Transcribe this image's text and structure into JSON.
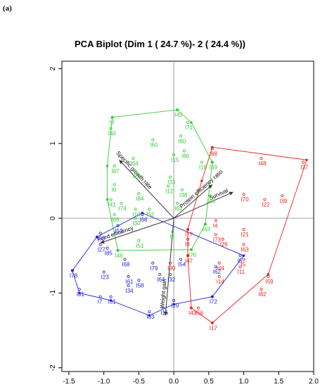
{
  "panel_label": "(a)",
  "chart_data": {
    "type": "scatter",
    "title": "PCA Biplot (Dim 1 ( 24.7 %)- 2 ( 24.4 %))",
    "xlim": [
      -1.6,
      2.0
    ],
    "ylim": [
      -2.05,
      2.1
    ],
    "x_ticks": [
      -1.5,
      -1.0,
      -0.5,
      0.0,
      0.5,
      1.0,
      1.5,
      2.0
    ],
    "x_tick_labels": [
      "-1.5",
      "-1.0",
      "-0.5",
      "0.0",
      "0.5",
      "1.0",
      "1.5",
      "2.0"
    ],
    "y_ticks": [
      -2,
      -1,
      0,
      1,
      2
    ],
    "y_tick_labels": [
      "-2",
      "-1",
      "0",
      "1",
      "2"
    ],
    "colors": {
      "green": "#33cc33",
      "red": "#ee2222",
      "blue": "#2222dd",
      "vector": "#333333",
      "axis": "#888888"
    },
    "groups": [
      {
        "color": "#33cc33",
        "points": [
          {
            "label": "I6",
            "x": -0.88,
            "y": 1.35
          },
          {
            "label": "I40",
            "x": -0.9,
            "y": 1.2
          },
          {
            "label": "I45",
            "x": 0.05,
            "y": 1.45
          },
          {
            "label": "I71",
            "x": 0.2,
            "y": 1.28
          },
          {
            "label": "I80",
            "x": 0.1,
            "y": 1.1
          },
          {
            "label": "I60",
            "x": -0.3,
            "y": 1.05
          },
          {
            "label": "I86",
            "x": 0.15,
            "y": 0.9
          },
          {
            "label": "I15",
            "x": 0.0,
            "y": 0.85
          },
          {
            "label": "I64",
            "x": -0.58,
            "y": 0.8
          },
          {
            "label": "I16",
            "x": 0.4,
            "y": 0.75
          },
          {
            "label": "I69",
            "x": 0.55,
            "y": 0.75
          },
          {
            "label": "I87",
            "x": -0.85,
            "y": 0.7
          },
          {
            "label": "I25",
            "x": -0.55,
            "y": 0.63
          },
          {
            "label": "I33",
            "x": -0.05,
            "y": 0.55
          },
          {
            "label": "I8",
            "x": -0.85,
            "y": 0.45
          },
          {
            "label": "I12",
            "x": -0.08,
            "y": 0.43
          },
          {
            "label": "I38",
            "x": 0.12,
            "y": 0.38
          },
          {
            "label": "I84",
            "x": -0.5,
            "y": 0.33
          },
          {
            "label": "I41",
            "x": -0.9,
            "y": 0.25
          },
          {
            "label": "I74",
            "x": -0.75,
            "y": 0.2
          },
          {
            "label": "I10",
            "x": -0.55,
            "y": 0.12
          },
          {
            "label": "I62",
            "x": 0.05,
            "y": 0.2
          },
          {
            "label": "I52",
            "x": -0.35,
            "y": 0.12
          },
          {
            "label": "I30",
            "x": -0.55,
            "y": 0.0
          },
          {
            "label": "I66",
            "x": -0.85,
            "y": 0.05
          },
          {
            "label": "I48",
            "x": 0.52,
            "y": 0.3
          },
          {
            "label": "I43",
            "x": 0.45,
            "y": -0.08
          },
          {
            "label": "I51",
            "x": -0.5,
            "y": -0.3
          },
          {
            "label": "I3",
            "x": -0.02,
            "y": -0.18
          },
          {
            "label": "I46",
            "x": -0.8,
            "y": -0.43
          },
          {
            "label": "I76",
            "x": 0.25,
            "y": -0.42
          }
        ],
        "hull": [
          [
            -0.88,
            1.35
          ],
          [
            0.05,
            1.45
          ],
          [
            0.25,
            1.28
          ],
          [
            0.55,
            0.75
          ],
          [
            0.45,
            -0.08
          ],
          [
            0.25,
            -0.42
          ],
          [
            -0.8,
            -0.43
          ],
          [
            -0.95,
            0.25
          ],
          [
            -0.95,
            0.7
          ]
        ]
      },
      {
        "color": "#ee2222",
        "points": [
          {
            "label": "I37",
            "x": 1.85,
            "y": 0.75
          },
          {
            "label": "I48",
            "x": 1.25,
            "y": 0.8
          },
          {
            "label": "I88",
            "x": 0.55,
            "y": 0.93
          },
          {
            "label": "I70",
            "x": 1.0,
            "y": 0.32
          },
          {
            "label": "I22",
            "x": 1.3,
            "y": 0.25
          },
          {
            "label": "I39",
            "x": 1.55,
            "y": 0.3
          },
          {
            "label": "I4",
            "x": 0.6,
            "y": -0.03
          },
          {
            "label": "I21",
            "x": 1.0,
            "y": -0.15
          },
          {
            "label": "I77",
            "x": 0.2,
            "y": -0.15
          },
          {
            "label": "I73",
            "x": 0.6,
            "y": -0.22
          },
          {
            "label": "I9",
            "x": 0.2,
            "y": -0.28
          },
          {
            "label": "I26",
            "x": 0.7,
            "y": -0.28
          },
          {
            "label": "I63",
            "x": 1.0,
            "y": -0.35
          },
          {
            "label": "I47",
            "x": 0.2,
            "y": -0.5
          },
          {
            "label": "I90",
            "x": -0.05,
            "y": -0.6
          },
          {
            "label": "I44",
            "x": 0.65,
            "y": -0.6
          },
          {
            "label": "I5",
            "x": 1.0,
            "y": -0.55
          },
          {
            "label": "I14",
            "x": 0.65,
            "y": -0.78
          },
          {
            "label": "I59",
            "x": 1.35,
            "y": -0.78
          },
          {
            "label": "I11",
            "x": 0.95,
            "y": -0.65
          },
          {
            "label": "I82",
            "x": 1.25,
            "y": -0.95
          },
          {
            "label": "I43",
            "x": 0.25,
            "y": -1.2
          },
          {
            "label": "I56",
            "x": 0.35,
            "y": -1.2
          },
          {
            "label": "I17",
            "x": 0.55,
            "y": -1.4
          }
        ],
        "hull": [
          [
            0.55,
            0.95
          ],
          [
            1.9,
            0.78
          ],
          [
            1.35,
            -0.75
          ],
          [
            0.55,
            -1.4
          ],
          [
            0.25,
            -1.2
          ],
          [
            0.2,
            -0.5
          ],
          [
            0.2,
            -0.15
          ],
          [
            0.4,
            0.5
          ]
        ]
      },
      {
        "color": "#2222dd",
        "points": [
          {
            "label": "I78",
            "x": -1.45,
            "y": -0.7
          },
          {
            "label": "I81",
            "x": -1.35,
            "y": -0.95
          },
          {
            "label": "I7",
            "x": -1.05,
            "y": -1.05
          },
          {
            "label": "I31",
            "x": -0.9,
            "y": -1.05
          },
          {
            "label": "I83",
            "x": -0.35,
            "y": -1.25
          },
          {
            "label": "I15",
            "x": -0.15,
            "y": -1.2
          },
          {
            "label": "I29",
            "x": 0.0,
            "y": -1.1
          },
          {
            "label": "I72",
            "x": 0.55,
            "y": -1.05
          },
          {
            "label": "I55",
            "x": -1.05,
            "y": -0.2
          },
          {
            "label": "I27",
            "x": -1.05,
            "y": -0.35
          },
          {
            "label": "I85",
            "x": -0.95,
            "y": -0.4
          },
          {
            "label": "I53",
            "x": -0.8,
            "y": -0.1
          },
          {
            "label": "I66",
            "x": -0.45,
            "y": 0.05
          },
          {
            "label": "I68",
            "x": -0.7,
            "y": -0.55
          },
          {
            "label": "I23",
            "x": -1.0,
            "y": -0.72
          },
          {
            "label": "I61",
            "x": -0.65,
            "y": -0.78
          },
          {
            "label": "I58",
            "x": -0.5,
            "y": -0.83
          },
          {
            "label": "I34",
            "x": -0.65,
            "y": -0.9
          },
          {
            "label": "I79",
            "x": -0.3,
            "y": -0.6
          },
          {
            "label": "I64",
            "x": -0.2,
            "y": -0.75
          },
          {
            "label": "I32",
            "x": -0.05,
            "y": -0.75
          },
          {
            "label": "I54",
            "x": 0.1,
            "y": -0.55
          },
          {
            "label": "I62",
            "x": 0.6,
            "y": -0.65
          },
          {
            "label": "I5",
            "x": 0.95,
            "y": -0.5
          }
        ],
        "hull": [
          [
            -1.45,
            -0.7
          ],
          [
            -1.1,
            -0.25
          ],
          [
            -0.45,
            0.07
          ],
          [
            1.0,
            -0.5
          ],
          [
            0.55,
            -1.05
          ],
          [
            0.0,
            -1.15
          ],
          [
            -0.35,
            -1.3
          ],
          [
            -0.9,
            -1.1
          ],
          [
            -1.35,
            -1.0
          ]
        ]
      }
    ],
    "vectors": [
      {
        "label": "Specific growth rate",
        "x": -0.78,
        "y": 0.78
      },
      {
        "label": "Protein efficiency ratio",
        "x": 0.55,
        "y": 0.45
      },
      {
        "label": "Survival",
        "x": 0.85,
        "y": 0.35
      },
      {
        "label": "Feed efficiency",
        "x": -1.05,
        "y": -0.33
      },
      {
        "label": "Weight gain",
        "x": -0.12,
        "y": -1.3
      }
    ]
  }
}
